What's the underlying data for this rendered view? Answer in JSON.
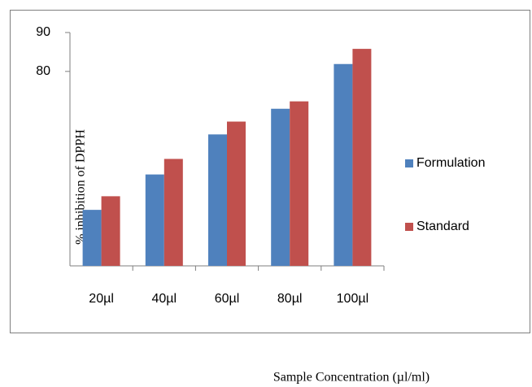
{
  "chart_data": {
    "type": "bar",
    "x_label": "Sample Concentration (µl/ml)",
    "y_label": "%  inhibition of DPPH",
    "categories": [
      "20µl",
      "40µl",
      "60µl",
      "80µl",
      "100µl"
    ],
    "series": [
      {
        "name": "Formulation",
        "color": "#4f81bd",
        "values": [
          44.4,
          53.5,
          63.8,
          70.4,
          81.9
        ]
      },
      {
        "name": "Standard",
        "color": "#c0504d",
        "values": [
          47.9,
          57.5,
          67.1,
          72.3,
          85.8
        ]
      }
    ],
    "ylim": [
      30,
      90
    ],
    "yticks": [
      80,
      90
    ],
    "grid": false,
    "legend": "right"
  }
}
